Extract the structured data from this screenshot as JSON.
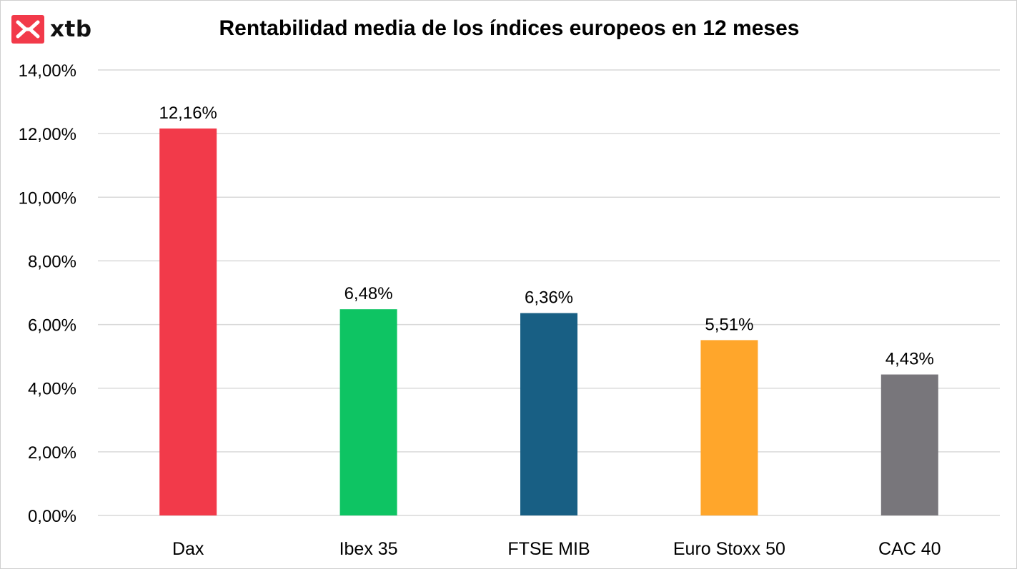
{
  "brand": {
    "name": "xtb",
    "color": "#f23a4a",
    "icon": "xtb-logo-icon"
  },
  "chart_data": {
    "type": "bar",
    "title": "Rentabilidad media de los índices europeos en 12 meses",
    "xlabel": "",
    "ylabel": "",
    "categories": [
      "Dax",
      "Ibex 35",
      "FTSE MIB",
      "Euro Stoxx 50",
      "CAC 40"
    ],
    "values": [
      12.16,
      6.48,
      6.36,
      5.51,
      4.43
    ],
    "value_labels": [
      "12,16%",
      "6,48%",
      "6,36%",
      "5,51%",
      "4,43%"
    ],
    "colors": [
      "#f23a4a",
      "#0ec463",
      "#185f84",
      "#ffa62b",
      "#78767b"
    ],
    "ylim": [
      0,
      14
    ],
    "yticks": [
      0,
      2,
      4,
      6,
      8,
      10,
      12,
      14
    ],
    "ytick_labels": [
      "0,00%",
      "2,00%",
      "4,00%",
      "6,00%",
      "8,00%",
      "10,00%",
      "12,00%",
      "14,00%"
    ],
    "grid": true,
    "legend": "none"
  }
}
